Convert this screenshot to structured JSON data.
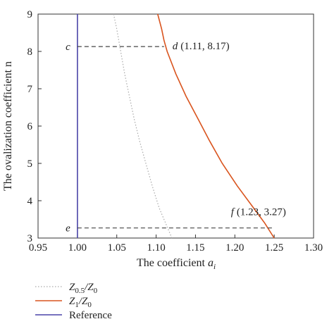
{
  "chart_data": {
    "type": "line",
    "xlabel": "The coefficient a",
    "xlabel_sub": "i",
    "ylabel": "The ovalization coefficient n",
    "xlim": [
      0.95,
      1.3
    ],
    "ylim": [
      3,
      9
    ],
    "xticks": [
      "0.95",
      "1.00",
      "1.05",
      "1.10",
      "1.15",
      "1.20",
      "1.25",
      "1.30"
    ],
    "yticks": [
      "3",
      "4",
      "5",
      "6",
      "7",
      "8",
      "9"
    ],
    "xtick_values": [
      0.95,
      1.0,
      1.05,
      1.1,
      1.15,
      1.2,
      1.25,
      1.3
    ],
    "ytick_values": [
      3,
      4,
      5,
      6,
      7,
      8,
      9
    ],
    "grid": false,
    "legend_placement": "bottom-left",
    "series": [
      {
        "legend": {
          "main": "Z",
          "sub1": "0.5",
          "mid": "/Z",
          "sub2": "0"
        },
        "style": "dotted",
        "color": "#aaaaaa",
        "points": [
          [
            1.046,
            9.0
          ],
          [
            1.05,
            8.6
          ],
          [
            1.055,
            8.0
          ],
          [
            1.06,
            7.4
          ],
          [
            1.066,
            6.8
          ],
          [
            1.072,
            6.2
          ],
          [
            1.079,
            5.6
          ],
          [
            1.087,
            5.0
          ],
          [
            1.095,
            4.4
          ],
          [
            1.104,
            3.8
          ],
          [
            1.112,
            3.4
          ],
          [
            1.12,
            3.0
          ]
        ]
      },
      {
        "legend": {
          "main": "Z",
          "sub1": "1",
          "mid": "/Z",
          "sub2": "0"
        },
        "style": "solid",
        "color": "#d9541e",
        "points": [
          [
            1.102,
            9.0
          ],
          [
            1.107,
            8.6
          ],
          [
            1.11,
            8.3
          ],
          [
            1.114,
            8.0
          ],
          [
            1.125,
            7.4
          ],
          [
            1.138,
            6.8
          ],
          [
            1.153,
            6.2
          ],
          [
            1.168,
            5.6
          ],
          [
            1.184,
            5.0
          ],
          [
            1.203,
            4.4
          ],
          [
            1.224,
            3.8
          ],
          [
            1.238,
            3.4
          ],
          [
            1.25,
            3.0
          ]
        ]
      },
      {
        "legend": {
          "main": "Reference",
          "sub1": "",
          "mid": "",
          "sub2": ""
        },
        "style": "solid",
        "color": "#4a44a8",
        "points": [
          [
            1.0,
            3.0
          ],
          [
            1.0,
            9.0
          ]
        ]
      }
    ],
    "annotations": [
      {
        "label": "c",
        "label_italic": true,
        "coords": "",
        "x": 1.0,
        "y": 8.13
      },
      {
        "label": "d",
        "label_italic": true,
        "coords": "(1.11, 8.17)",
        "x": 1.11,
        "y": 8.17
      },
      {
        "label": "e",
        "label_italic": true,
        "coords": "",
        "x": 1.0,
        "y": 3.27
      },
      {
        "label": "f",
        "label_italic": true,
        "coords": "(1.23, 3.27)",
        "x": 1.23,
        "y": 3.27
      }
    ],
    "dashed_guides": [
      {
        "from": [
          1.0,
          8.13
        ],
        "to": [
          1.11,
          8.13
        ]
      },
      {
        "from": [
          1.0,
          3.27
        ],
        "to": [
          1.25,
          3.27
        ]
      }
    ]
  }
}
